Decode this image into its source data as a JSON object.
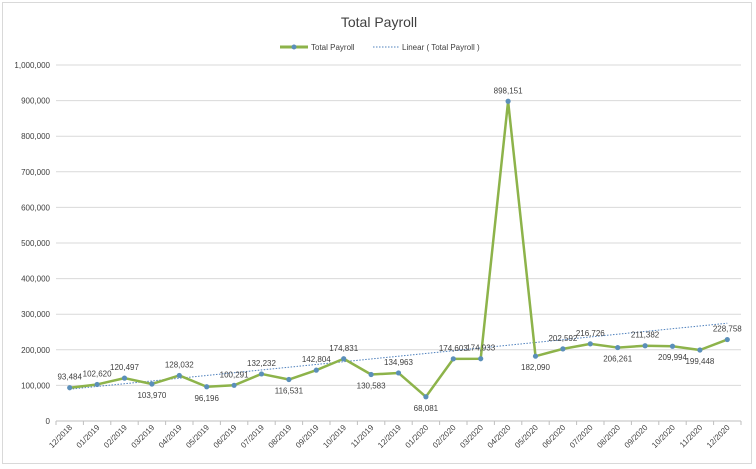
{
  "chart_data": {
    "type": "line",
    "title": "Total Payroll",
    "categories": [
      "12/2018",
      "01/2019",
      "02/2019",
      "03/2019",
      "04/2019",
      "05/2019",
      "06/2019",
      "07/2019",
      "08/2019",
      "09/2019",
      "10/2019",
      "11/2019",
      "12/2019",
      "01/2020",
      "02/2020",
      "03/2020",
      "04/2020",
      "05/2020",
      "06/2020",
      "07/2020",
      "08/2020",
      "09/2020",
      "10/2020",
      "11/2020",
      "12/2020"
    ],
    "series": [
      {
        "name": "Total Payroll",
        "color": "#8db34a",
        "marker_color": "#5b8fb9",
        "values": [
          93484,
          102620,
          120497,
          103970,
          128032,
          96196,
          100291,
          132232,
          116531,
          142804,
          174831,
          130583,
          134963,
          68081,
          174603,
          174933,
          898151,
          182090,
          202592,
          216726,
          206261,
          211382,
          209994,
          199448,
          228758
        ],
        "labels": [
          "93,484",
          "102,620",
          "120,497",
          "103,970",
          "128,032",
          "96,196",
          "100,291",
          "132,232",
          "116,531",
          "142,804",
          "174,831",
          "130,583",
          "134,963",
          "68,081",
          "174,603",
          "174,933",
          "898,151",
          "182,090",
          "202,592",
          "216,726",
          "206,261",
          "211,382",
          "209,994",
          "199,448",
          "228,758"
        ]
      }
    ],
    "trendline": {
      "name": "Linear ( Total Payroll )",
      "type": "linear",
      "color": "#4f81bd"
    },
    "ylim": [
      0,
      1000000
    ],
    "yticks": [
      0,
      100000,
      200000,
      300000,
      400000,
      500000,
      600000,
      700000,
      800000,
      900000,
      1000000
    ],
    "ytick_labels": [
      "0",
      "100,000",
      "200,000",
      "300,000",
      "400,000",
      "500,000",
      "600,000",
      "700,000",
      "800,000",
      "900,000",
      "1,000,000"
    ],
    "grid": true,
    "legend": "top-center",
    "xlabel": "",
    "ylabel": ""
  }
}
